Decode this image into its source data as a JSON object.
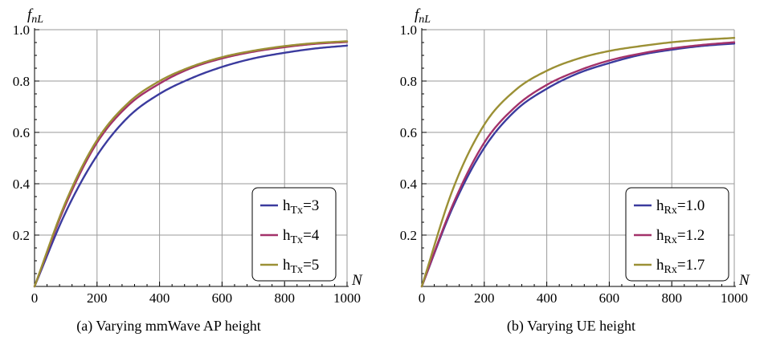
{
  "chart_data": [
    {
      "type": "line",
      "caption": "(a) Varying mmWave AP height",
      "xlabel": "N",
      "ylabel": "f",
      "ylabel_sub": "nL",
      "xlim": [
        0,
        1000
      ],
      "ylim": [
        0,
        1.0
      ],
      "xticks": [
        0,
        200,
        400,
        600,
        800,
        1000
      ],
      "xtick_labels": [
        "0",
        "200",
        "400",
        "600",
        "800",
        "1000"
      ],
      "yticks": [
        0.2,
        0.4,
        0.6,
        0.8,
        1.0
      ],
      "ytick_labels": [
        "0.2",
        "0.4",
        "0.6",
        "0.8",
        "1.0"
      ],
      "grid": true,
      "legend_position": "bottom-right",
      "x": [
        0,
        100,
        200,
        300,
        400,
        500,
        600,
        700,
        800,
        900,
        1000
      ],
      "series": [
        {
          "name_main": "h",
          "name_sub": "Tx",
          "name_value": "=3",
          "color": "#3b3b9e",
          "values": [
            0,
            0.29,
            0.51,
            0.66,
            0.75,
            0.81,
            0.855,
            0.888,
            0.91,
            0.927,
            0.938
          ]
        },
        {
          "name_main": "h",
          "name_sub": "Tx",
          "name_value": "=4",
          "color": "#a3326a",
          "values": [
            0,
            0.32,
            0.56,
            0.705,
            0.79,
            0.85,
            0.888,
            0.914,
            0.932,
            0.945,
            0.952
          ]
        },
        {
          "name_main": "h",
          "name_sub": "Tx",
          "name_value": "=5",
          "color": "#9b9035",
          "values": [
            0,
            0.33,
            0.57,
            0.715,
            0.8,
            0.855,
            0.893,
            0.918,
            0.936,
            0.948,
            0.955
          ]
        }
      ]
    },
    {
      "type": "line",
      "caption": "(b) Varying UE height",
      "xlabel": "N",
      "ylabel": "f",
      "ylabel_sub": "nL",
      "xlim": [
        0,
        1000
      ],
      "ylim": [
        0,
        1.0
      ],
      "xticks": [
        0,
        200,
        400,
        600,
        800,
        1000
      ],
      "xtick_labels": [
        "0",
        "200",
        "400",
        "600",
        "800",
        "1000"
      ],
      "yticks": [
        0.2,
        0.4,
        0.6,
        0.8,
        1.0
      ],
      "ytick_labels": [
        "0.2",
        "0.4",
        "0.6",
        "0.8",
        "1.0"
      ],
      "grid": true,
      "legend_position": "bottom-right",
      "x": [
        0,
        100,
        200,
        300,
        400,
        500,
        600,
        700,
        800,
        900,
        1000
      ],
      "series": [
        {
          "name_main": "h",
          "name_sub": "Rx",
          "name_value": "=1.0",
          "color": "#3b3b9e",
          "values": [
            0,
            0.31,
            0.54,
            0.685,
            0.77,
            0.83,
            0.87,
            0.902,
            0.922,
            0.937,
            0.946
          ]
        },
        {
          "name_main": "h",
          "name_sub": "Rx",
          "name_value": "=1.2",
          "color": "#a3326a",
          "values": [
            0,
            0.32,
            0.56,
            0.7,
            0.785,
            0.84,
            0.88,
            0.907,
            0.927,
            0.941,
            0.951
          ]
        },
        {
          "name_main": "h",
          "name_sub": "Rx",
          "name_value": "=1.7",
          "color": "#9b9035",
          "values": [
            0,
            0.38,
            0.63,
            0.765,
            0.84,
            0.887,
            0.917,
            0.936,
            0.951,
            0.961,
            0.968
          ]
        }
      ]
    }
  ]
}
